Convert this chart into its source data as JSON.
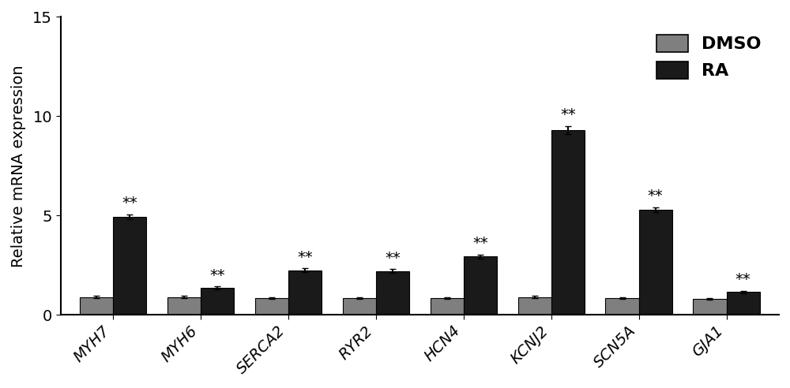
{
  "categories": [
    "MYH7",
    "MYH6",
    "SERCA2",
    "RYR2",
    "HCN4",
    "KCNJ2",
    "SCN5A",
    "GJA1"
  ],
  "dmso_values": [
    0.9,
    0.9,
    0.85,
    0.85,
    0.85,
    0.9,
    0.85,
    0.8
  ],
  "ra_values": [
    4.95,
    1.35,
    2.25,
    2.2,
    2.95,
    9.3,
    5.3,
    1.15
  ],
  "dmso_errors": [
    0.05,
    0.05,
    0.05,
    0.05,
    0.05,
    0.05,
    0.05,
    0.05
  ],
  "ra_errors": [
    0.12,
    0.08,
    0.1,
    0.1,
    0.1,
    0.2,
    0.12,
    0.06
  ],
  "dmso_color": "#7f7f7f",
  "ra_color": "#1a1a1a",
  "ylabel": "Relative mRNA expression",
  "ylim": [
    0,
    15
  ],
  "yticks": [
    0,
    5,
    10,
    15
  ],
  "bar_width": 0.38,
  "significance_label": "**",
  "legend_labels": [
    "DMSO",
    "RA"
  ],
  "legend_fontsize": 16,
  "tick_label_fontsize": 14,
  "ylabel_fontsize": 14,
  "sig_fontsize": 14,
  "background_color": "#ffffff"
}
